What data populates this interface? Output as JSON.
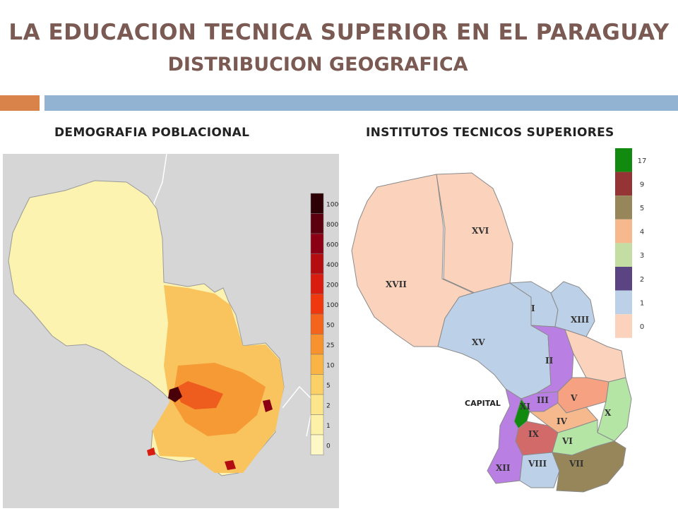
{
  "header": {
    "title_line1": "LA EDUCACION TECNICA SUPERIOR EN EL PARAGUAY",
    "title_line2": "DISTRIBUCION  GEOGRAFICA"
  },
  "left_panel": {
    "heading": "DEMOGRAFIA POBLACIONAL",
    "legend": {
      "labels": [
        "1000",
        "800",
        "600",
        "400",
        "200",
        "100",
        "50",
        "25",
        "10",
        "5",
        "2",
        "1",
        "0"
      ],
      "colors": [
        "#2d0006",
        "#5c0010",
        "#8b0014",
        "#b30d12",
        "#d91c10",
        "#f0380f",
        "#f5641c",
        "#f7922e",
        "#f9b445",
        "#fbd066",
        "#fce58a",
        "#fdf1a8",
        "#fef8c6"
      ]
    }
  },
  "right_panel": {
    "heading": "INSTITUTOS TECNICOS SUPERIORES",
    "legend": {
      "labels": [
        "17",
        "9",
        "5",
        "4",
        "3",
        "2",
        "1",
        "0"
      ],
      "colors": [
        "#118a0f",
        "#943434",
        "#96865a",
        "#f6b98d",
        "#c3dda3",
        "#5a4582",
        "#bcd0e7",
        "#fbd3bd"
      ]
    },
    "region_labels": {
      "xvi": "XVI",
      "xvii": "XVII",
      "xv": "XV",
      "i": "I",
      "xiii": "XIII",
      "ii": "II",
      "iii": "III",
      "xi": "XI",
      "v": "V",
      "iv": "IV",
      "ix": "IX",
      "x": "X",
      "vi": "VI",
      "xii": "XII",
      "viii": "VIII",
      "vii": "VII"
    },
    "capital_label": "CAPITAL"
  }
}
